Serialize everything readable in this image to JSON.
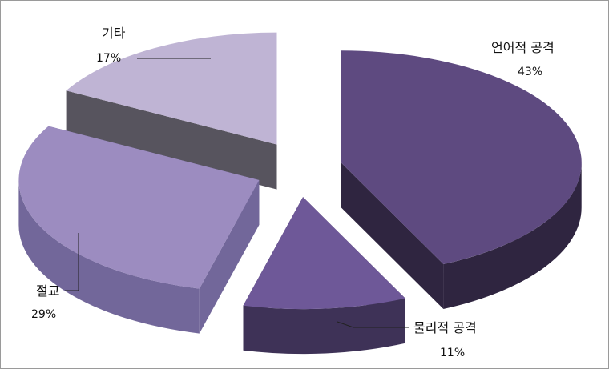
{
  "chart_data": {
    "type": "pie",
    "style": "3d-exploded",
    "slices": [
      {
        "label": "언어적 공격",
        "value": 43,
        "value_label": "43%",
        "color": "#5e4a80",
        "side_color": "#2f2540"
      },
      {
        "label": "물리적 공격",
        "value": 11,
        "value_label": "11%",
        "color": "#6e5898",
        "side_color": "#3e3257"
      },
      {
        "label": "절교",
        "value": 29,
        "value_label": "29%",
        "color": "#9c8cc0",
        "side_color": "#72679a"
      },
      {
        "label": "기타",
        "value": 17,
        "value_label": "17%",
        "color": "#bfb4d4",
        "side_color": "#57545e"
      }
    ],
    "legend": "none"
  }
}
